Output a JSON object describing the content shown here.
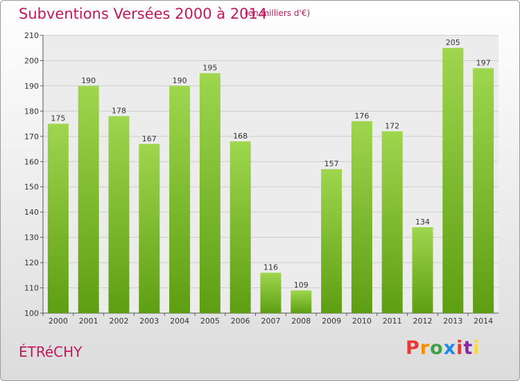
{
  "header": {
    "title": "Subventions Versées 2000 à 2014",
    "unit": "(en milliers d'€)"
  },
  "footer": {
    "commune": "ÉTRéCHY",
    "logo_letters": [
      "P",
      "r",
      "o",
      "x",
      "i",
      "t",
      "i"
    ],
    "logo_colors": [
      "#e53935",
      "#fb8c00",
      "#43a047",
      "#1e88e5",
      "#e53935",
      "#8e24aa",
      "#fdd835"
    ]
  },
  "colors": {
    "bar_light": "#9ed64e",
    "bar_dark": "#5e9e12",
    "grid": "#cccccc",
    "plot_bg": "#ececec",
    "accent": "#c2185b"
  },
  "chart_data": {
    "type": "bar",
    "categories": [
      "2000",
      "2001",
      "2002",
      "2003",
      "2004",
      "2005",
      "2006",
      "2007",
      "2008",
      "2009",
      "2010",
      "2011",
      "2012",
      "2013",
      "2014"
    ],
    "values": [
      175,
      190,
      178,
      167,
      190,
      195,
      168,
      116,
      109,
      157,
      176,
      172,
      134,
      205,
      197
    ],
    "ylim": [
      100,
      210
    ],
    "yticks": [
      100,
      110,
      120,
      130,
      140,
      150,
      160,
      170,
      180,
      190,
      200,
      210
    ],
    "grid": true,
    "data_labels": true
  }
}
